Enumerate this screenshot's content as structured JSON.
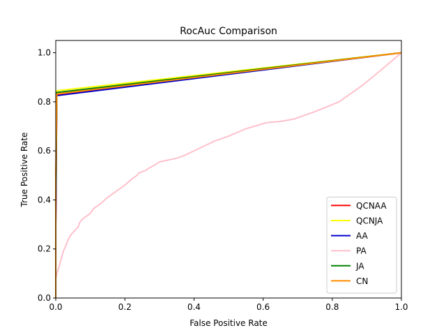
{
  "chart_data": {
    "type": "line",
    "title": "RocAuc Comparison",
    "xlabel": "False Positive Rate",
    "ylabel": "True Positive Rate",
    "xlim": [
      0,
      1
    ],
    "ylim": [
      0,
      1.05
    ],
    "xticks": [
      0.0,
      0.2,
      0.4,
      0.6,
      0.8,
      1.0
    ],
    "yticks": [
      0.0,
      0.2,
      0.4,
      0.6,
      0.8,
      1.0
    ],
    "xtick_labels": [
      "0.0",
      "0.2",
      "0.4",
      "0.6",
      "0.8",
      "1.0"
    ],
    "ytick_labels": [
      "0.0",
      "0.2",
      "0.4",
      "0.6",
      "0.8",
      "1.0"
    ],
    "grid": false,
    "legend_position": "lower-right",
    "series": [
      {
        "name": "QCNAA",
        "color": "#ff0000",
        "x": [
          0,
          0,
          0.003,
          1.0
        ],
        "y": [
          0,
          0.3,
          0.828,
          1.0
        ]
      },
      {
        "name": "QCNJA",
        "color": "#ffff00",
        "x": [
          0,
          0,
          0.003,
          1.0
        ],
        "y": [
          0,
          0.4,
          0.845,
          1.0
        ]
      },
      {
        "name": "AA",
        "color": "#0000cd",
        "x": [
          0,
          0,
          0.003,
          1.0
        ],
        "y": [
          0,
          0.3,
          0.825,
          1.0
        ]
      },
      {
        "name": "PA",
        "color": "#ffc0cb",
        "x": [
          0.0,
          0.003,
          0.008,
          0.012,
          0.018,
          0.022,
          0.028,
          0.035,
          0.04,
          0.045,
          0.055,
          0.065,
          0.07,
          0.08,
          0.09,
          0.1,
          0.11,
          0.13,
          0.15,
          0.16,
          0.18,
          0.2,
          0.22,
          0.235,
          0.24,
          0.26,
          0.27,
          0.29,
          0.3,
          0.35,
          0.37,
          0.4,
          0.43,
          0.46,
          0.5,
          0.55,
          0.61,
          0.65,
          0.69,
          0.75,
          0.82,
          0.89,
          0.95,
          1.0
        ],
        "y": [
          0.08,
          0.1,
          0.12,
          0.14,
          0.17,
          0.19,
          0.21,
          0.235,
          0.25,
          0.26,
          0.275,
          0.29,
          0.31,
          0.325,
          0.335,
          0.345,
          0.365,
          0.385,
          0.41,
          0.42,
          0.44,
          0.46,
          0.485,
          0.5,
          0.51,
          0.52,
          0.53,
          0.545,
          0.555,
          0.57,
          0.58,
          0.6,
          0.62,
          0.64,
          0.66,
          0.69,
          0.715,
          0.72,
          0.73,
          0.76,
          0.8,
          0.87,
          0.94,
          1.0
        ]
      },
      {
        "name": "JA",
        "color": "#008000",
        "x": [
          0,
          0,
          0.003,
          1.0
        ],
        "y": [
          0,
          0.4,
          0.838,
          1.0
        ]
      },
      {
        "name": "CN",
        "color": "#ff8c00",
        "x": [
          0,
          0,
          0.003,
          1.0
        ],
        "y": [
          0,
          0.5,
          0.832,
          1.0
        ]
      }
    ]
  }
}
